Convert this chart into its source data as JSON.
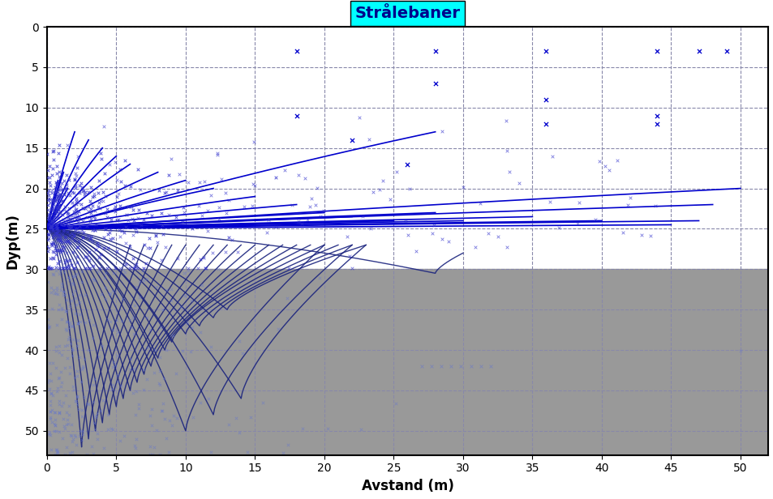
{
  "title": "Strålebaner",
  "xlabel": "Avstand (m)",
  "ylabel": "Dyp(m)",
  "xlim": [
    0,
    52
  ],
  "ylim": [
    53,
    0
  ],
  "xticks": [
    0,
    5,
    10,
    15,
    20,
    25,
    30,
    35,
    40,
    45,
    50
  ],
  "yticks": [
    0,
    5,
    10,
    15,
    20,
    25,
    30,
    35,
    40,
    45,
    50
  ],
  "source_depth": 25,
  "bottom_depth": 30,
  "bg_color": "#ffffff",
  "bottom_color": "#999999",
  "line_color_above": "#0000cc",
  "line_color_below": "#1a237e",
  "scatter_color_above": "#3333cc",
  "scatter_color_below": "#6677cc",
  "title_bg": "#00ffff",
  "title_color": "#00008B",
  "grid_color": "#8888aa",
  "grid_style": "--"
}
